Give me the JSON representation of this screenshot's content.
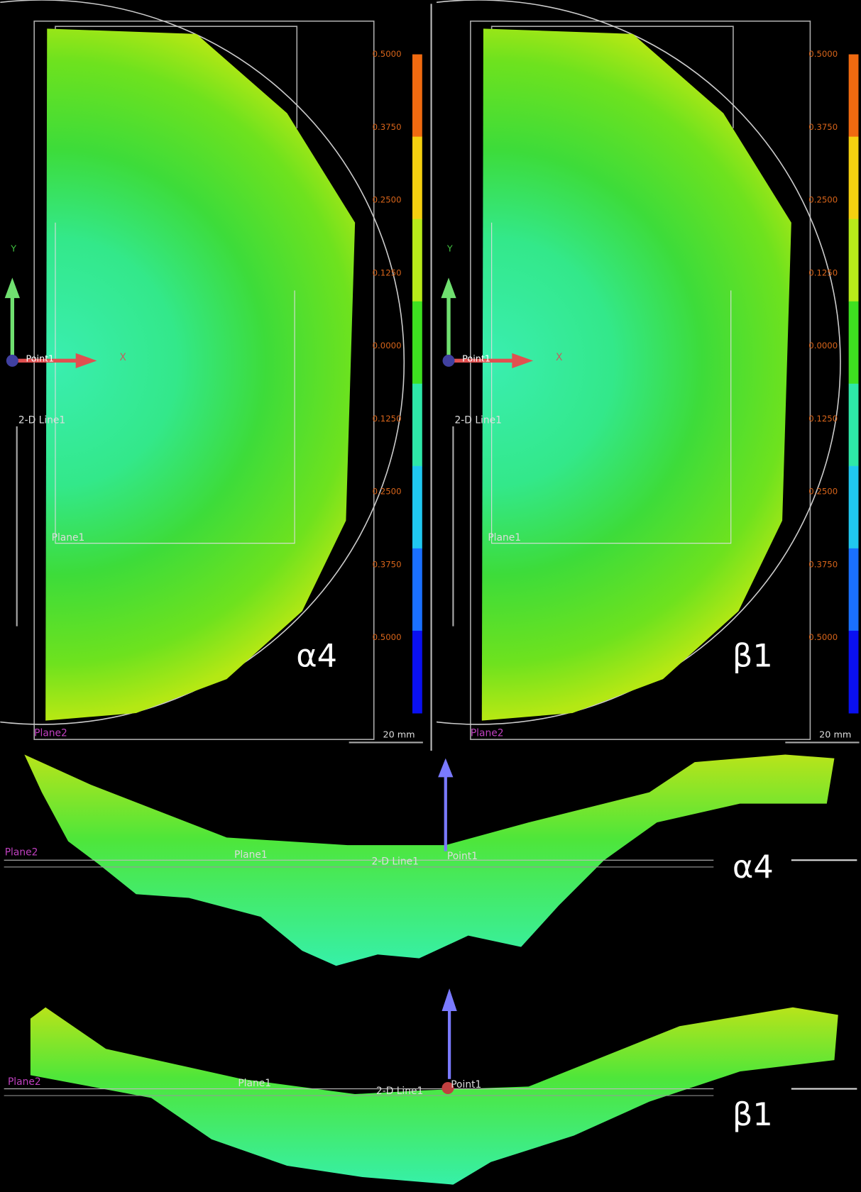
{
  "panels": [
    {
      "label": "α4",
      "colorbar_ticks": [
        "0.5000",
        "0.3750",
        "0.2500",
        "0.1250",
        "0.0000",
        "0.1250",
        "0.2500",
        "0.3750",
        "0.5000"
      ],
      "y_axis": "Y",
      "x_axis": "X",
      "point": "Point1",
      "line": "2-D Line1",
      "plane1": "Plane1",
      "plane2": "Plane2",
      "scale": "20 mm"
    },
    {
      "label": "β1",
      "colorbar_ticks": [
        "0.5000",
        "0.3750",
        "0.2500",
        "0.1250",
        "0.0000",
        "0.1250",
        "0.2500",
        "0.3750",
        "0.5000"
      ],
      "y_axis": "Y",
      "x_axis": "X",
      "point": "Point1",
      "line": "2-D Line1",
      "plane1": "Plane1",
      "plane2": "Plane2",
      "scale": "20 mm"
    }
  ],
  "profiles": [
    {
      "label": "α4",
      "plane2": "Plane2",
      "plane1": "Plane1",
      "line": "2-D Line1",
      "point": "Point1"
    },
    {
      "label": "β1",
      "plane2": "Plane2",
      "plane1": "Plane1",
      "line": "2-D Line1",
      "point": "Point1"
    }
  ]
}
